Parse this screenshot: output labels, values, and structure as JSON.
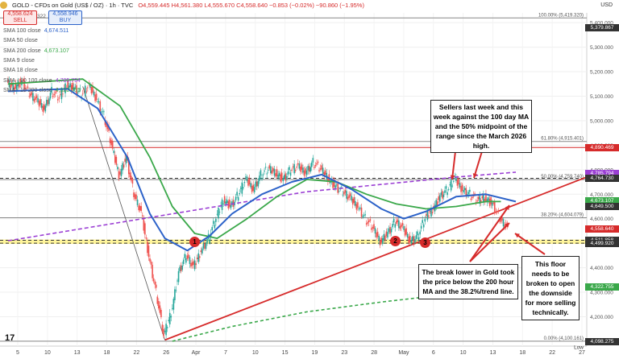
{
  "header": {
    "title": "GOLD - CFDs on Gold (US$ / OZ) · 1h · TVC",
    "ohlc": "O4,559.445  H4,561.380  L4,555.670  C4,558.640  −0.853 (−0.02%)  −90.860 (−1.95%)",
    "currency": "USD"
  },
  "trade": {
    "sell_price": "4,558.624",
    "sell_label": "SELL",
    "spread": "322",
    "buy_price": "4,558.946",
    "buy_label": "BUY"
  },
  "legend": [
    {
      "label": "SMA 100 close",
      "value": "4,674.511",
      "color": "#2c62c9"
    },
    {
      "label": "SMA 50 close",
      "value": "",
      "color": "#999999"
    },
    {
      "label": "SMA 200 close",
      "value": "4,673.107",
      "color": "#3aa84a"
    },
    {
      "label": "SMA 9 close",
      "value": "",
      "color": "#999999"
    },
    {
      "label": "SMA 18 close",
      "value": "",
      "color": "#999999"
    },
    {
      "label": "SMA - 10 100 close",
      "value": "4,785.794",
      "color": "#9b3fd4"
    },
    {
      "label": "SMA - 10 200 close",
      "value": "4,322.755",
      "color": "#3aa84a"
    }
  ],
  "annotations": {
    "sellers": "Sellers last week and this week against the 100 day MA and the 50% midpoint of the range since the March 2026 high.",
    "break": "The break lower in Gold took the price below the 200 hour MA and the 38.2%/trend line.",
    "floor": "This floor needs to be broken to open the downside for more selling technically."
  },
  "markers": [
    "1",
    "2",
    "3"
  ],
  "fib_labels": [
    "100.00% (5,419.320)",
    "61.80% (4,915.401)",
    "50.00% (4,759.740)",
    "38.20% (4,604.079)",
    "0.00% (4,100.161)"
  ],
  "low_label": "Low",
  "price_badges": [
    {
      "value": "4,890.469",
      "color": "#d62b2b"
    },
    {
      "value": "4,785.794",
      "color": "#9b3fd4"
    },
    {
      "value": "4,764.730",
      "color": "#333333"
    },
    {
      "value": "4,674.511",
      "color": "#2c62c9"
    },
    {
      "value": "4,673.107",
      "color": "#3aa84a"
    },
    {
      "value": "4,649.500",
      "color": "#333333"
    },
    {
      "value": "4,558.640",
      "color": "#d62b2b"
    },
    {
      "value": "4,511.858",
      "color": "#333333"
    },
    {
      "value": "4,499.920",
      "color": "#333333"
    },
    {
      "value": "4,322.755",
      "color": "#3aa84a"
    },
    {
      "value": "4,098.275",
      "color": "#333333"
    },
    {
      "value": "5,379.867",
      "color": "#333333"
    }
  ],
  "chart_data": {
    "type": "candlestick",
    "x_ticks": [
      "5",
      "10",
      "13",
      "18",
      "22",
      "26",
      "Apr",
      "7",
      "10",
      "15",
      "19",
      "23",
      "28",
      "May",
      "6",
      "10",
      "13",
      "18",
      "22",
      "27"
    ],
    "y_ticks": [
      5400,
      5300,
      5200,
      5100,
      5000,
      4900,
      4800,
      4700,
      4600,
      4500,
      4400,
      4300,
      4200,
      4100
    ],
    "ylim": [
      4080,
      5440
    ],
    "price_path": [
      [
        0,
        5150
      ],
      [
        1,
        5140
      ],
      [
        2,
        5160
      ],
      [
        3,
        5110
      ],
      [
        4,
        5080
      ],
      [
        5,
        5050
      ],
      [
        6,
        5120
      ],
      [
        7,
        5090
      ],
      [
        8,
        5150
      ],
      [
        9,
        5130
      ],
      [
        10,
        5110
      ],
      [
        11,
        5140
      ],
      [
        12,
        5090
      ],
      [
        13,
        5020
      ],
      [
        14,
        4900
      ],
      [
        15,
        4780
      ],
      [
        16,
        4850
      ],
      [
        17,
        4700
      ],
      [
        18,
        4620
      ],
      [
        19,
        4450
      ],
      [
        20,
        4300
      ],
      [
        21,
        4120
      ],
      [
        22,
        4220
      ],
      [
        23,
        4380
      ],
      [
        24,
        4450
      ],
      [
        25,
        4400
      ],
      [
        26,
        4470
      ],
      [
        27,
        4520
      ],
      [
        28,
        4600
      ],
      [
        29,
        4680
      ],
      [
        30,
        4650
      ],
      [
        31,
        4700
      ],
      [
        32,
        4760
      ],
      [
        33,
        4720
      ],
      [
        34,
        4780
      ],
      [
        35,
        4800
      ],
      [
        36,
        4790
      ],
      [
        37,
        4760
      ],
      [
        38,
        4800
      ],
      [
        39,
        4810
      ],
      [
        40,
        4790
      ],
      [
        41,
        4830
      ],
      [
        42,
        4800
      ],
      [
        43,
        4770
      ],
      [
        44,
        4730
      ],
      [
        45,
        4710
      ],
      [
        46,
        4680
      ],
      [
        47,
        4650
      ],
      [
        48,
        4600
      ],
      [
        49,
        4560
      ],
      [
        50,
        4510
      ],
      [
        51,
        4540
      ],
      [
        52,
        4590
      ],
      [
        53,
        4560
      ],
      [
        54,
        4510
      ],
      [
        55,
        4530
      ],
      [
        56,
        4600
      ],
      [
        57,
        4640
      ],
      [
        58,
        4690
      ],
      [
        59,
        4720
      ],
      [
        60,
        4760
      ],
      [
        61,
        4720
      ],
      [
        62,
        4700
      ],
      [
        63,
        4670
      ],
      [
        64,
        4690
      ],
      [
        65,
        4660
      ],
      [
        66,
        4600
      ],
      [
        67,
        4560
      ]
    ],
    "sma100": [
      [
        0,
        5120
      ],
      [
        8,
        5130
      ],
      [
        12,
        5050
      ],
      [
        16,
        4850
      ],
      [
        19,
        4620
      ],
      [
        21,
        4520
      ],
      [
        24,
        4470
      ],
      [
        27,
        4530
      ],
      [
        30,
        4620
      ],
      [
        34,
        4700
      ],
      [
        38,
        4750
      ],
      [
        42,
        4780
      ],
      [
        46,
        4720
      ],
      [
        50,
        4640
      ],
      [
        53,
        4600
      ],
      [
        56,
        4630
      ],
      [
        60,
        4690
      ],
      [
        64,
        4700
      ],
      [
        68,
        4670
      ]
    ],
    "sma200": [
      [
        0,
        5150
      ],
      [
        10,
        5170
      ],
      [
        15,
        5060
      ],
      [
        19,
        4850
      ],
      [
        22,
        4650
      ],
      [
        25,
        4540
      ],
      [
        28,
        4520
      ],
      [
        32,
        4600
      ],
      [
        36,
        4690
      ],
      [
        40,
        4760
      ],
      [
        44,
        4750
      ],
      [
        48,
        4700
      ],
      [
        52,
        4660
      ],
      [
        56,
        4640
      ],
      [
        60,
        4650
      ],
      [
        64,
        4670
      ],
      [
        66,
        4670
      ]
    ],
    "dma100_dashed": [
      [
        0,
        4510
      ],
      [
        10,
        4560
      ],
      [
        20,
        4610
      ],
      [
        30,
        4660
      ],
      [
        40,
        4710
      ],
      [
        50,
        4740
      ],
      [
        60,
        4770
      ],
      [
        68,
        4790
      ]
    ],
    "dma200_dashed": [
      [
        22,
        4100
      ],
      [
        30,
        4160
      ],
      [
        40,
        4220
      ],
      [
        50,
        4260
      ],
      [
        60,
        4295
      ],
      [
        68,
        4325
      ]
    ]
  }
}
